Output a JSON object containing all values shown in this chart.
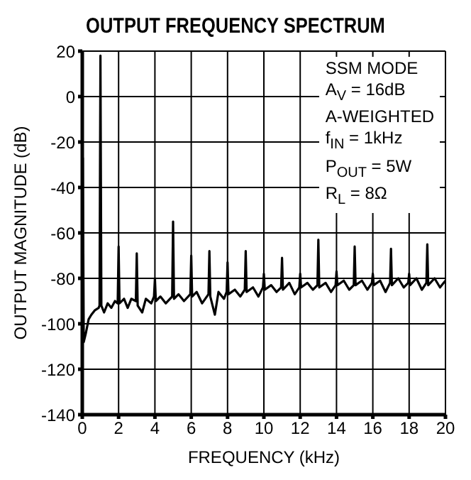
{
  "chart_data": {
    "type": "line",
    "title": "OUTPUT FREQUENCY SPECTRUM",
    "xlabel": "FREQUENCY (kHz)",
    "ylabel": "OUTPUT MAGNITUDE (dB)",
    "annotations": [
      "SSM MODE",
      "A$_{V}$ = 16dB",
      "A-WEIGHTED",
      "f$_{IN}$ = 1kHz",
      "P$_{OUT}$ = 5W",
      "R$_{L}$ = 8Ω"
    ],
    "x": [
      0,
      0.03,
      0.08,
      0.2,
      0.35,
      0.5,
      0.7,
      0.9,
      0.95,
      1.0,
      1.05,
      1.2,
      1.4,
      1.6,
      1.8,
      1.95,
      2.0,
      2.05,
      2.3,
      2.5,
      2.7,
      2.95,
      3.0,
      3.05,
      3.3,
      3.5,
      3.8,
      3.95,
      4.0,
      4.05,
      4.3,
      4.6,
      4.95,
      5.0,
      5.05,
      5.3,
      5.6,
      5.95,
      6.0,
      6.05,
      6.3,
      6.6,
      6.95,
      7.0,
      7.05,
      7.3,
      7.5,
      7.8,
      7.95,
      8.0,
      8.05,
      8.4,
      8.7,
      8.95,
      9.0,
      9.05,
      9.4,
      9.7,
      9.95,
      10.0,
      10.05,
      10.4,
      10.7,
      10.95,
      11.0,
      11.05,
      11.4,
      11.7,
      11.95,
      12.0,
      12.05,
      12.4,
      12.7,
      12.95,
      13.0,
      13.05,
      13.4,
      13.7,
      13.95,
      14.0,
      14.05,
      14.4,
      14.7,
      14.95,
      15.0,
      15.05,
      15.4,
      15.7,
      15.95,
      16.0,
      16.05,
      16.4,
      16.7,
      16.95,
      17.0,
      17.05,
      17.4,
      17.7,
      17.95,
      18.0,
      18.05,
      18.4,
      18.7,
      18.95,
      19.0,
      19.05,
      19.4,
      19.7,
      20
    ],
    "series": [
      {
        "color": "#000000",
        "values": [
          -100,
          -27,
          -108,
          -104,
          -98,
          -96,
          -94,
          -93,
          -92,
          18,
          -92,
          -95,
          -91,
          -93,
          -90,
          -91,
          -66,
          -91,
          -89,
          -93,
          -89,
          -90,
          -69,
          -92,
          -95,
          -89,
          -91,
          -88,
          -80,
          -90,
          -88,
          -91,
          -88,
          -55,
          -89,
          -87,
          -90,
          -87,
          -70,
          -88,
          -86,
          -91,
          -87,
          -68,
          -88,
          -96,
          -86,
          -89,
          -86,
          -73,
          -87,
          -85,
          -88,
          -85,
          -68,
          -86,
          -84,
          -88,
          -84,
          -78,
          -85,
          -83,
          -86,
          -84,
          -71,
          -85,
          -82,
          -87,
          -84,
          -78,
          -84,
          -82,
          -85,
          -83,
          -63,
          -84,
          -82,
          -86,
          -83,
          -77,
          -83,
          -81,
          -85,
          -83,
          -66,
          -83,
          -81,
          -85,
          -82,
          -78,
          -83,
          -81,
          -86,
          -82,
          -67,
          -83,
          -80,
          -84,
          -82,
          -78,
          -83,
          -80,
          -85,
          -82,
          -65,
          -83,
          -80,
          -84,
          -81
        ]
      }
    ],
    "xlim": [
      0,
      20
    ],
    "xticks": [
      0,
      2,
      4,
      6,
      8,
      10,
      12,
      14,
      16,
      18,
      20
    ],
    "ylim": [
      -140,
      20
    ],
    "yticks": [
      -140,
      -120,
      -100,
      -80,
      -60,
      -40,
      -20,
      0,
      20
    ],
    "grid": true,
    "line_style": "solid"
  }
}
